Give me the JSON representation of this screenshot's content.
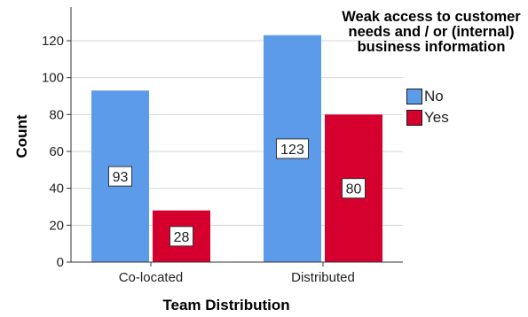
{
  "chart_data": {
    "type": "bar",
    "title": "",
    "xlabel": "Team Distribution",
    "ylabel": "Count",
    "categories": [
      "Co-located",
      "Distributed"
    ],
    "series": [
      {
        "name": "No",
        "values": [
          93,
          123
        ],
        "color": "#5b9bea"
      },
      {
        "name": "Yes",
        "values": [
          28,
          80
        ],
        "color": "#d6002f"
      }
    ],
    "ylim": [
      0,
      140
    ],
    "yticks": [
      0,
      20,
      40,
      60,
      80,
      100,
      120
    ],
    "grid": true,
    "legend": {
      "title": "Weak access to customer needs and / or (internal) business information",
      "placement": "top-right"
    }
  }
}
